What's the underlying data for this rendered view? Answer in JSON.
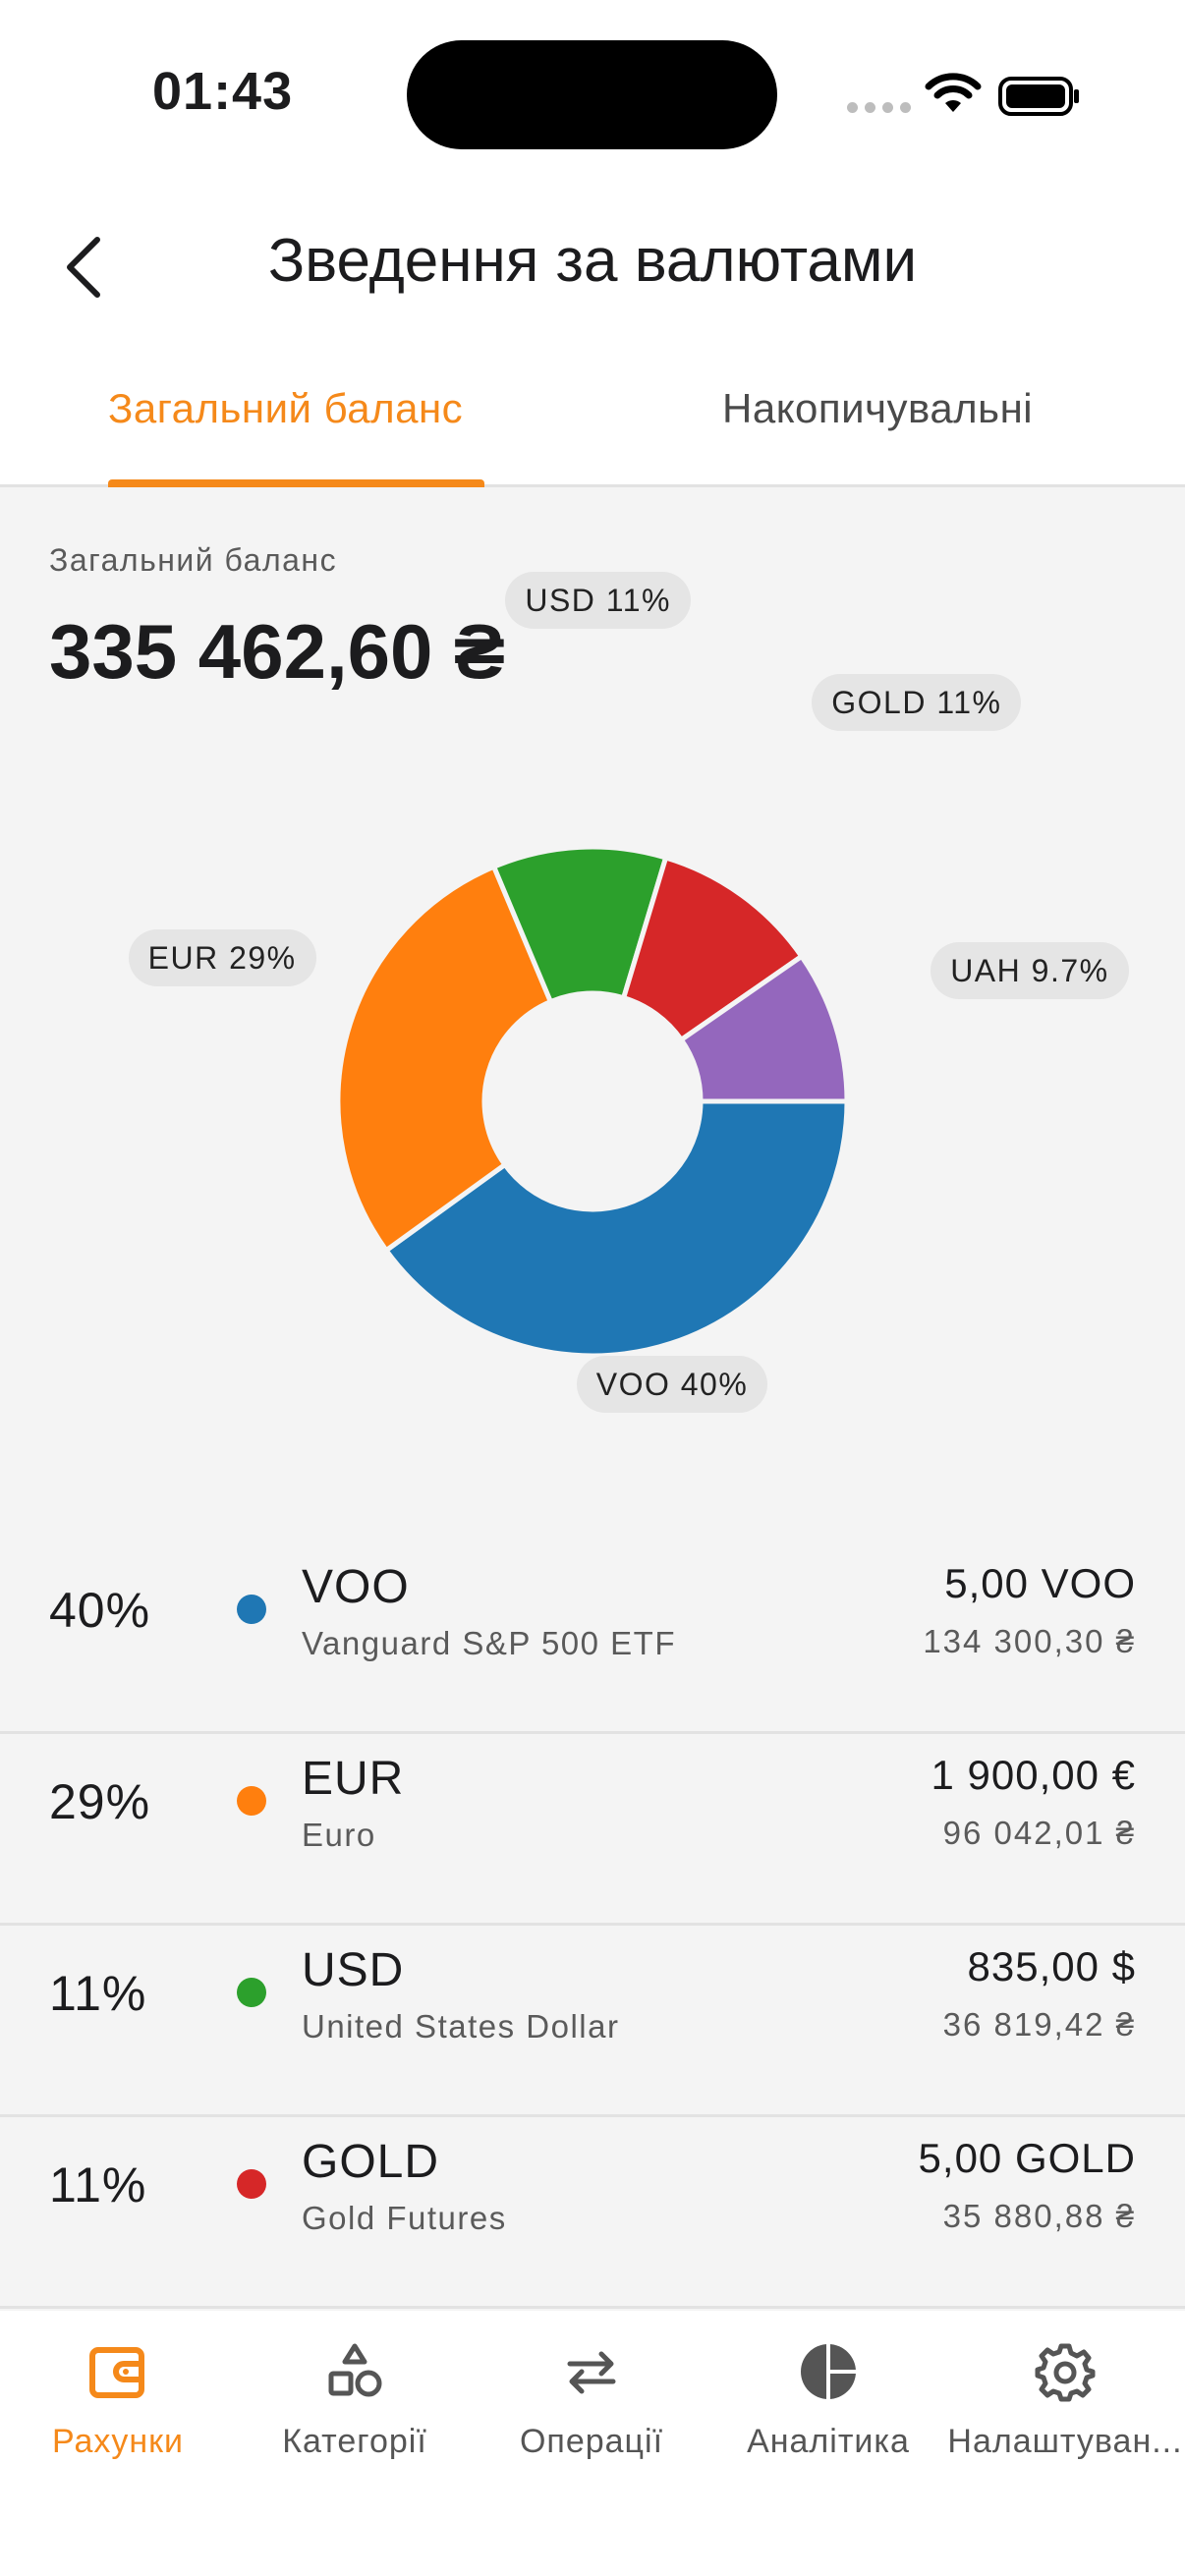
{
  "status_bar": {
    "time": "01:43"
  },
  "header": {
    "title": "Зведення за валютами"
  },
  "tabs": [
    {
      "label": "Загальний баланс",
      "active": true
    },
    {
      "label": "Накопичувальні",
      "active": false
    }
  ],
  "summary": {
    "label": "Загальний баланс",
    "value": "335 462,60 ₴"
  },
  "chart_data": {
    "type": "pie",
    "title": "",
    "slices": [
      {
        "label": "VOO 40%",
        "name": "VOO",
        "value": 40.04,
        "color": "#1f77b4"
      },
      {
        "label": "EUR 29%",
        "name": "EUR",
        "value": 28.63,
        "color": "#ff7f0e"
      },
      {
        "label": "USD 11%",
        "name": "USD",
        "value": 10.98,
        "color": "#2ca02c"
      },
      {
        "label": "GOLD 11%",
        "name": "GOLD",
        "value": 10.7,
        "color": "#d62728"
      },
      {
        "label": "UAH 9.7%",
        "name": "UAH",
        "value": 9.65,
        "color": "#9467bd"
      }
    ]
  },
  "currencies": [
    {
      "percent": "40%",
      "code": "VOO",
      "name": "Vanguard S&P 500 ETF",
      "amount": "5,00 VOO",
      "uah": "134 300,30 ₴",
      "color": "#1f77b4"
    },
    {
      "percent": "29%",
      "code": "EUR",
      "name": "Euro",
      "amount": "1 900,00 €",
      "uah": "96 042,01 ₴",
      "color": "#ff7f0e"
    },
    {
      "percent": "11%",
      "code": "USD",
      "name": "United States Dollar",
      "amount": "835,00 $",
      "uah": "36 819,42 ₴",
      "color": "#2ca02c"
    },
    {
      "percent": "11%",
      "code": "GOLD",
      "name": "Gold Futures",
      "amount": "5,00 GOLD",
      "uah": "35 880,88 ₴",
      "color": "#d62728"
    }
  ],
  "nav": [
    {
      "label": "Рахунки",
      "icon": "wallet-icon",
      "active": true
    },
    {
      "label": "Категорії",
      "icon": "shapes-icon",
      "active": false
    },
    {
      "label": "Операції",
      "icon": "transfer-arrows-icon",
      "active": false
    },
    {
      "label": "Аналітика",
      "icon": "pie-chart-icon",
      "active": false
    },
    {
      "label": "Налаштуван...",
      "icon": "gear-icon",
      "active": false
    }
  ],
  "colors": {
    "accent": "#f5891a"
  }
}
